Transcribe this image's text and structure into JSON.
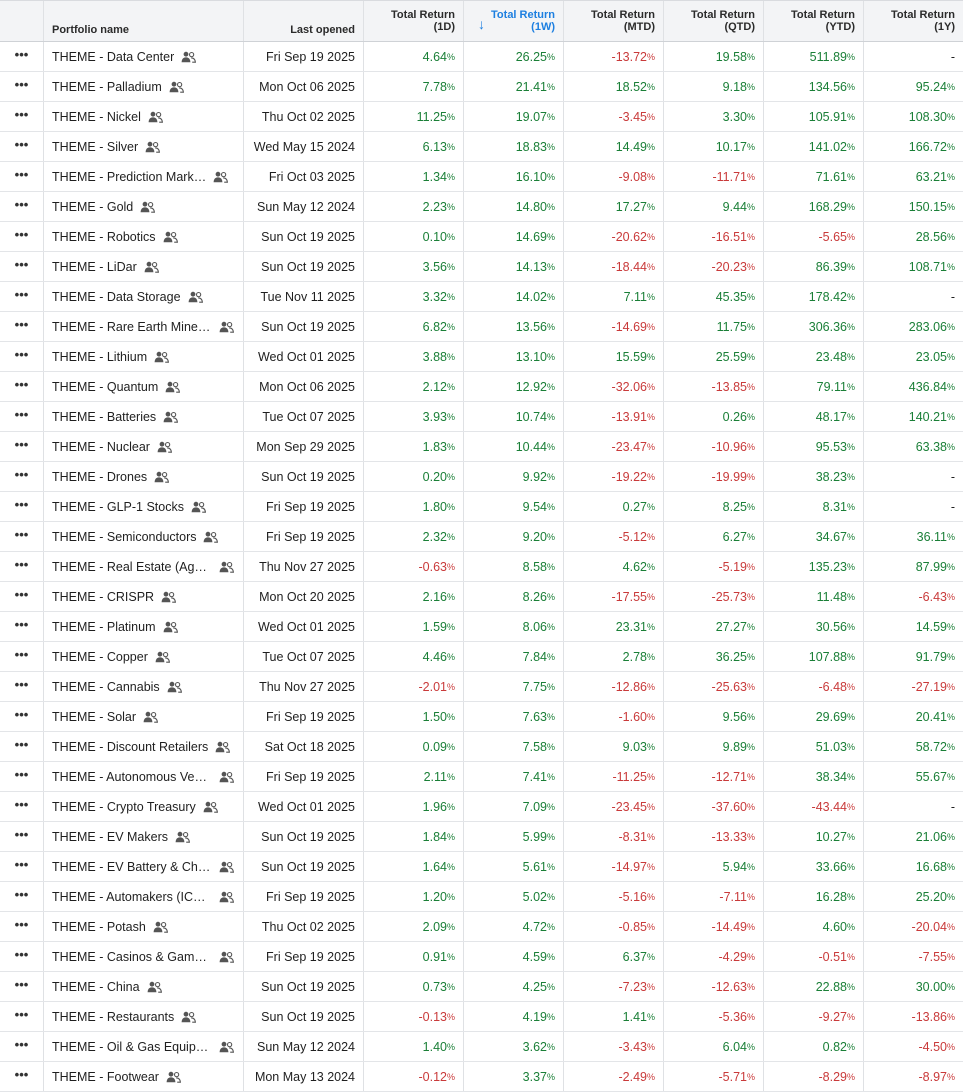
{
  "columns": {
    "name": "Portfolio name",
    "last_opened": "Last opened",
    "r1d": [
      "Total Return",
      "(1D)"
    ],
    "r1w": [
      "Total Return",
      "(1W)"
    ],
    "rmtd": [
      "Total Return",
      "(MTD)"
    ],
    "rqtd": [
      "Total Return",
      "(QTD)"
    ],
    "rytd": [
      "Total Return",
      "(YTD)"
    ],
    "r1y": [
      "Total Return",
      "(1Y)"
    ]
  },
  "menu_glyph": "•••",
  "sort_arrow": "↓",
  "rows": [
    {
      "name": "THEME - Data Center",
      "date": "Fri Sep 19 2025",
      "r1d": "4.64",
      "r1w": "26.25",
      "rmtd": "-13.72",
      "rqtd": "19.58",
      "rytd": "511.89",
      "r1y": "-"
    },
    {
      "name": "THEME - Palladium",
      "date": "Mon Oct 06 2025",
      "r1d": "7.78",
      "r1w": "21.41",
      "rmtd": "18.52",
      "rqtd": "9.18",
      "rytd": "134.56",
      "r1y": "95.24"
    },
    {
      "name": "THEME - Nickel",
      "date": "Thu Oct 02 2025",
      "r1d": "11.25",
      "r1w": "19.07",
      "rmtd": "-3.45",
      "rqtd": "3.30",
      "rytd": "105.91",
      "r1y": "108.30"
    },
    {
      "name": "THEME - Silver",
      "date": "Wed May 15 2024",
      "r1d": "6.13",
      "r1w": "18.83",
      "rmtd": "14.49",
      "rqtd": "10.17",
      "rytd": "141.02",
      "r1y": "166.72"
    },
    {
      "name": "THEME - Prediction Mark…",
      "date": "Fri Oct 03 2025",
      "r1d": "1.34",
      "r1w": "16.10",
      "rmtd": "-9.08",
      "rqtd": "-11.71",
      "rytd": "71.61",
      "r1y": "63.21"
    },
    {
      "name": "THEME - Gold",
      "date": "Sun May 12 2024",
      "r1d": "2.23",
      "r1w": "14.80",
      "rmtd": "17.27",
      "rqtd": "9.44",
      "rytd": "168.29",
      "r1y": "150.15"
    },
    {
      "name": "THEME - Robotics",
      "date": "Sun Oct 19 2025",
      "r1d": "0.10",
      "r1w": "14.69",
      "rmtd": "-20.62",
      "rqtd": "-16.51",
      "rytd": "-5.65",
      "r1y": "28.56"
    },
    {
      "name": "THEME - LiDar",
      "date": "Sun Oct 19 2025",
      "r1d": "3.56",
      "r1w": "14.13",
      "rmtd": "-18.44",
      "rqtd": "-20.23",
      "rytd": "86.39",
      "r1y": "108.71"
    },
    {
      "name": "THEME - Data Storage",
      "date": "Tue Nov 11 2025",
      "r1d": "3.32",
      "r1w": "14.02",
      "rmtd": "7.11",
      "rqtd": "45.35",
      "rytd": "178.42",
      "r1y": "-"
    },
    {
      "name": "THEME - Rare Earth Miner…",
      "date": "Sun Oct 19 2025",
      "r1d": "6.82",
      "r1w": "13.56",
      "rmtd": "-14.69",
      "rqtd": "11.75",
      "rytd": "306.36",
      "r1y": "283.06"
    },
    {
      "name": "THEME - Lithium",
      "date": "Wed Oct 01 2025",
      "r1d": "3.88",
      "r1w": "13.10",
      "rmtd": "15.59",
      "rqtd": "25.59",
      "rytd": "23.48",
      "r1y": "23.05"
    },
    {
      "name": "THEME - Quantum",
      "date": "Mon Oct 06 2025",
      "r1d": "2.12",
      "r1w": "12.92",
      "rmtd": "-32.06",
      "rqtd": "-13.85",
      "rytd": "79.11",
      "r1y": "436.84"
    },
    {
      "name": "THEME - Batteries",
      "date": "Tue Oct 07 2025",
      "r1d": "3.93",
      "r1w": "10.74",
      "rmtd": "-13.91",
      "rqtd": "0.26",
      "rytd": "48.17",
      "r1y": "140.21"
    },
    {
      "name": "THEME - Nuclear",
      "date": "Mon Sep 29 2025",
      "r1d": "1.83",
      "r1w": "10.44",
      "rmtd": "-23.47",
      "rqtd": "-10.96",
      "rytd": "95.53",
      "r1y": "63.38"
    },
    {
      "name": "THEME - Drones",
      "date": "Sun Oct 19 2025",
      "r1d": "0.20",
      "r1w": "9.92",
      "rmtd": "-19.22",
      "rqtd": "-19.99",
      "rytd": "38.23",
      "r1y": "-"
    },
    {
      "name": "THEME - GLP-1 Stocks",
      "date": "Fri Sep 19 2025",
      "r1d": "1.80",
      "r1w": "9.54",
      "rmtd": "0.27",
      "rqtd": "8.25",
      "rytd": "8.31",
      "r1y": "-"
    },
    {
      "name": "THEME - Semiconductors",
      "date": "Fri Sep 19 2025",
      "r1d": "2.32",
      "r1w": "9.20",
      "rmtd": "-5.12",
      "rqtd": "6.27",
      "rytd": "34.67",
      "r1y": "36.11"
    },
    {
      "name": "THEME - Real Estate (Age…",
      "date": "Thu Nov 27 2025",
      "r1d": "-0.63",
      "r1w": "8.58",
      "rmtd": "4.62",
      "rqtd": "-5.19",
      "rytd": "135.23",
      "r1y": "87.99"
    },
    {
      "name": "THEME - CRISPR",
      "date": "Mon Oct 20 2025",
      "r1d": "2.16",
      "r1w": "8.26",
      "rmtd": "-17.55",
      "rqtd": "-25.73",
      "rytd": "11.48",
      "r1y": "-6.43"
    },
    {
      "name": "THEME - Platinum",
      "date": "Wed Oct 01 2025",
      "r1d": "1.59",
      "r1w": "8.06",
      "rmtd": "23.31",
      "rqtd": "27.27",
      "rytd": "30.56",
      "r1y": "14.59"
    },
    {
      "name": "THEME - Copper",
      "date": "Tue Oct 07 2025",
      "r1d": "4.46",
      "r1w": "7.84",
      "rmtd": "2.78",
      "rqtd": "36.25",
      "rytd": "107.88",
      "r1y": "91.79"
    },
    {
      "name": "THEME - Cannabis",
      "date": "Thu Nov 27 2025",
      "r1d": "-2.01",
      "r1w": "7.75",
      "rmtd": "-12.86",
      "rqtd": "-25.63",
      "rytd": "-6.48",
      "r1y": "-27.19"
    },
    {
      "name": "THEME - Solar",
      "date": "Fri Sep 19 2025",
      "r1d": "1.50",
      "r1w": "7.63",
      "rmtd": "-1.60",
      "rqtd": "9.56",
      "rytd": "29.69",
      "r1y": "20.41"
    },
    {
      "name": "THEME - Discount Retailers",
      "date": "Sat Oct 18 2025",
      "r1d": "0.09",
      "r1w": "7.58",
      "rmtd": "9.03",
      "rqtd": "9.89",
      "rytd": "51.03",
      "r1y": "58.72"
    },
    {
      "name": "THEME - Autonomous Veh…",
      "date": "Fri Sep 19 2025",
      "r1d": "2.11",
      "r1w": "7.41",
      "rmtd": "-11.25",
      "rqtd": "-12.71",
      "rytd": "38.34",
      "r1y": "55.67"
    },
    {
      "name": "THEME - Crypto Treasury",
      "date": "Wed Oct 01 2025",
      "r1d": "1.96",
      "r1w": "7.09",
      "rmtd": "-23.45",
      "rqtd": "-37.60",
      "rytd": "-43.44",
      "r1y": "-"
    },
    {
      "name": "THEME - EV Makers",
      "date": "Sun Oct 19 2025",
      "r1d": "1.84",
      "r1w": "5.99",
      "rmtd": "-8.31",
      "rqtd": "-13.33",
      "rytd": "10.27",
      "r1y": "21.06"
    },
    {
      "name": "THEME - EV Battery & Cha…",
      "date": "Sun Oct 19 2025",
      "r1d": "1.64",
      "r1w": "5.61",
      "rmtd": "-14.97",
      "rqtd": "5.94",
      "rytd": "33.66",
      "r1y": "16.68"
    },
    {
      "name": "THEME - Automakers (ICE …",
      "date": "Fri Sep 19 2025",
      "r1d": "1.20",
      "r1w": "5.02",
      "rmtd": "-5.16",
      "rqtd": "-7.11",
      "rytd": "16.28",
      "r1y": "25.20"
    },
    {
      "name": "THEME - Potash",
      "date": "Thu Oct 02 2025",
      "r1d": "2.09",
      "r1w": "4.72",
      "rmtd": "-0.85",
      "rqtd": "-14.49",
      "rytd": "4.60",
      "r1y": "-20.04"
    },
    {
      "name": "THEME - Casinos & Gambl…",
      "date": "Fri Sep 19 2025",
      "r1d": "0.91",
      "r1w": "4.59",
      "rmtd": "6.37",
      "rqtd": "-4.29",
      "rytd": "-0.51",
      "r1y": "-7.55"
    },
    {
      "name": "THEME - China",
      "date": "Sun Oct 19 2025",
      "r1d": "0.73",
      "r1w": "4.25",
      "rmtd": "-7.23",
      "rqtd": "-12.63",
      "rytd": "22.88",
      "r1y": "30.00"
    },
    {
      "name": "THEME - Restaurants",
      "date": "Sun Oct 19 2025",
      "r1d": "-0.13",
      "r1w": "4.19",
      "rmtd": "1.41",
      "rqtd": "-5.36",
      "rytd": "-9.27",
      "r1y": "-13.86"
    },
    {
      "name": "THEME - Oil & Gas Equipm…",
      "date": "Sun May 12 2024",
      "r1d": "1.40",
      "r1w": "3.62",
      "rmtd": "-3.43",
      "rqtd": "6.04",
      "rytd": "0.82",
      "r1y": "-4.50"
    },
    {
      "name": "THEME - Footwear",
      "date": "Mon May 13 2024",
      "r1d": "-0.12",
      "r1w": "3.37",
      "rmtd": "-2.49",
      "rqtd": "-5.71",
      "rytd": "-8.29",
      "r1y": "-8.97"
    }
  ],
  "colors": {
    "positive": "#1a7f37",
    "negative": "#c93a3a",
    "sorted_header": "#1d7fe0"
  }
}
